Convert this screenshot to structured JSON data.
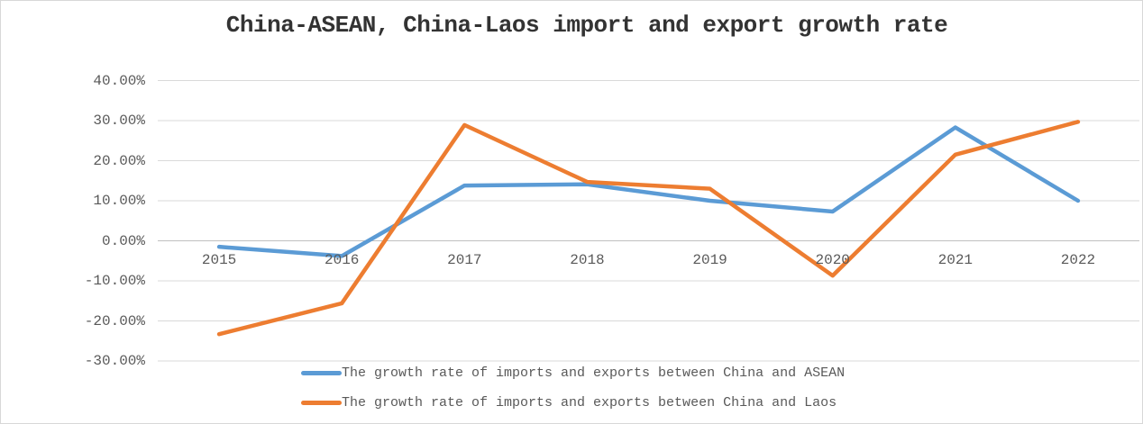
{
  "title": "China-ASEAN, China-Laos import and export growth rate",
  "chart_data": {
    "type": "line",
    "title": "China-ASEAN, China-Laos import and export growth rate",
    "categories": [
      "2015",
      "2016",
      "2017",
      "2018",
      "2019",
      "2020",
      "2021",
      "2022"
    ],
    "series": [
      {
        "name": "The growth rate of imports and exports between China and ASEAN",
        "color": "#5B9BD5",
        "values": [
          -1.5,
          -3.8,
          13.8,
          14.1,
          10.0,
          7.3,
          28.3,
          10.0
        ]
      },
      {
        "name": "The growth rate of imports and exports between China and Laos",
        "color": "#ED7D31",
        "values": [
          -23.3,
          -15.6,
          28.9,
          14.7,
          13.0,
          -8.7,
          21.5,
          29.7
        ]
      }
    ],
    "ylim": [
      -30,
      40
    ],
    "yticks": [
      {
        "value": 40,
        "label": "40.00%"
      },
      {
        "value": 30,
        "label": "30.00%"
      },
      {
        "value": 20,
        "label": "20.00%"
      },
      {
        "value": 10,
        "label": "10.00%"
      },
      {
        "value": 0,
        "label": "0.00%"
      },
      {
        "value": -10,
        "label": "-10.00%"
      },
      {
        "value": -20,
        "label": "-20.00%"
      },
      {
        "value": -30,
        "label": "-30.00%"
      }
    ],
    "grid": true,
    "legend_position": "bottom-left",
    "colors": {
      "gridline": "#D9D9D9",
      "axis_line": "#BFBFBF",
      "tick_text": "#595959",
      "title_text": "#333333"
    }
  }
}
